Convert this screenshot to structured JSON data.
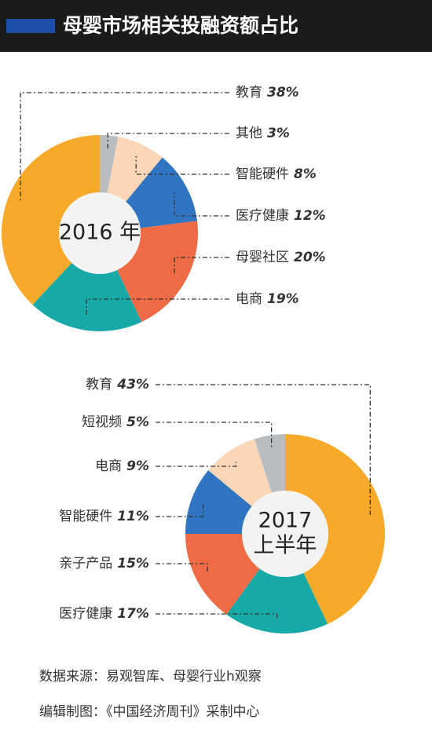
{
  "title": "母婴市场相关投融资额占比",
  "source": [
    "数据来源：易观智库、母婴行业h观察",
    "编辑制图：《中国经济周刊》采制中心"
  ],
  "chart_data": [
    {
      "type": "pie",
      "title_lines": [
        "2016 年"
      ],
      "categories": [
        "教育",
        "其他",
        "智能硬件",
        "医疗健康",
        "母婴社区",
        "电商"
      ],
      "values": [
        38,
        3,
        8,
        12,
        20,
        19
      ],
      "value_labels": [
        "38%",
        "3%",
        "8%",
        "12%",
        "20%",
        "19%"
      ],
      "colors": [
        "#f7a92a",
        "#b9bdc0",
        "#fbd7b8",
        "#2f75c1",
        "#ee6b45",
        "#16a9a8"
      ]
    },
    {
      "type": "pie",
      "title_lines": [
        "2017",
        "上半年"
      ],
      "categories": [
        "教育",
        "短视频",
        "电商",
        "智能硬件",
        "亲子产品",
        "医疗健康"
      ],
      "values": [
        43,
        5,
        9,
        11,
        15,
        17
      ],
      "value_labels": [
        "43%",
        "5%",
        "9%",
        "11%",
        "15%",
        "17%"
      ],
      "colors": [
        "#f7a92a",
        "#b9bdc0",
        "#fbd7b8",
        "#2f75c1",
        "#ee6b45",
        "#16a9a8"
      ]
    }
  ]
}
